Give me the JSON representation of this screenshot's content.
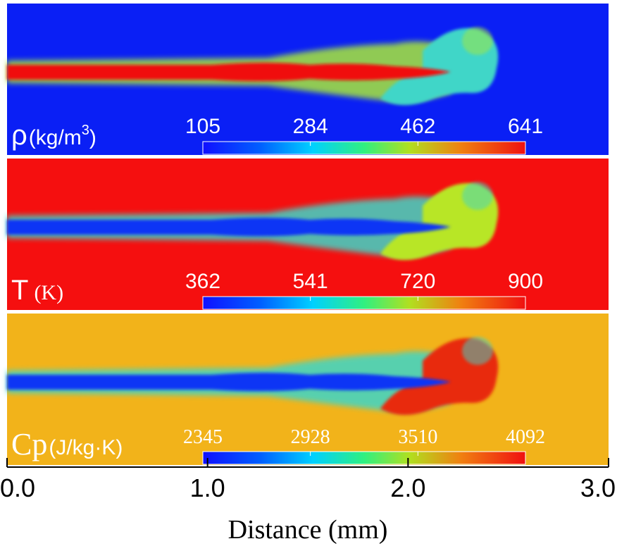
{
  "chart_data": {
    "type": "heatmap",
    "xlabel": "Distance (mm)",
    "xlim": [
      0.0,
      3.0
    ],
    "x_ticks": [
      "0.0",
      "1.0",
      "2.0",
      "3.0"
    ],
    "colormap": "jet",
    "panels": [
      {
        "symbol": "ρ",
        "unit": "(kg/m",
        "unit_sup": "3",
        "unit_close": ")",
        "colorbar_ticks": [
          "105",
          "284",
          "462",
          "641"
        ],
        "range": [
          105,
          641
        ],
        "background_color": "#0a1ff5",
        "jet_color": "#f01010",
        "head_color": "#3fd6c8",
        "mid_color": "#a8e838"
      },
      {
        "symbol": "T",
        "unit": "(K)",
        "colorbar_ticks": [
          "362",
          "541",
          "720",
          "900"
        ],
        "range": [
          362,
          900
        ],
        "background_color": "#f50f0f",
        "jet_color": "#1035f5",
        "head_color": "#b8e628",
        "mid_color": "#3dd6c8"
      },
      {
        "symbol": "Cp",
        "unit": "(J/kg·K)",
        "colorbar_ticks": [
          "2345",
          "2928",
          "3510",
          "4092"
        ],
        "range": [
          2345,
          4092
        ],
        "background_color": "#f2b31a",
        "jet_color": "#1035f5",
        "head_color": "#e82a10",
        "mid_color": "#3dd6c8"
      }
    ]
  }
}
